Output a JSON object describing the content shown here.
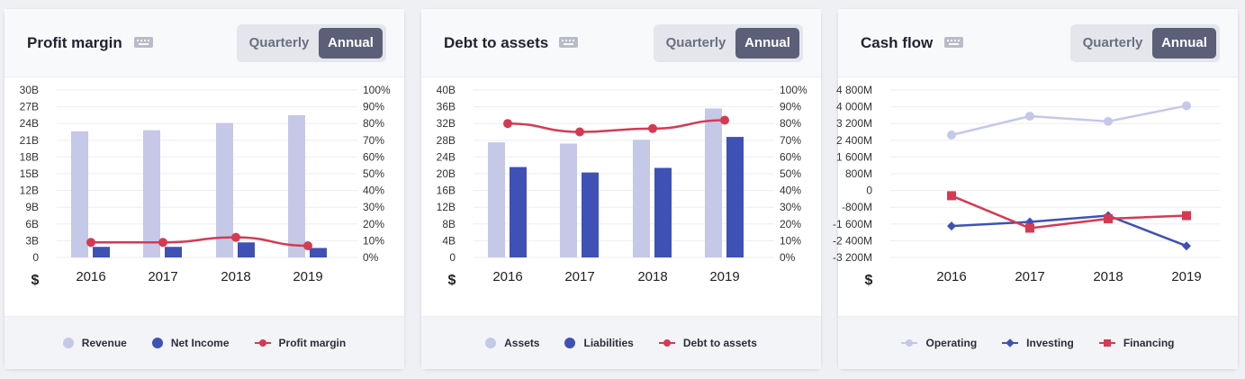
{
  "toggle": {
    "quarterly": "Quarterly",
    "annual": "Annual"
  },
  "cards": [
    {
      "title": "Profit margin",
      "unit": "$",
      "legend": [
        {
          "label": "Revenue",
          "color": "#c5c8e7",
          "kind": "dot"
        },
        {
          "label": "Net Income",
          "color": "#3f51b5",
          "kind": "dot"
        },
        {
          "label": "Profit margin",
          "color": "#d63a52",
          "kind": "line-circle"
        }
      ]
    },
    {
      "title": "Debt to assets",
      "unit": "$",
      "legend": [
        {
          "label": "Assets",
          "color": "#c5c8e7",
          "kind": "dot"
        },
        {
          "label": "Liabilities",
          "color": "#3f51b5",
          "kind": "dot"
        },
        {
          "label": "Debt to assets",
          "color": "#d63a52",
          "kind": "line-circle"
        }
      ]
    },
    {
      "title": "Cash flow",
      "unit": "$",
      "legend": [
        {
          "label": "Operating",
          "color": "#c5c8e7",
          "kind": "line-circle"
        },
        {
          "label": "Investing",
          "color": "#3f51b5",
          "kind": "line-diamond"
        },
        {
          "label": "Financing",
          "color": "#d63a52",
          "kind": "line-square"
        }
      ]
    }
  ],
  "chart_data": [
    {
      "type": "bar",
      "title": "Profit margin",
      "categories": [
        "2016",
        "2017",
        "2018",
        "2019"
      ],
      "y_left": {
        "ticks": [
          "0",
          "3B",
          "6B",
          "9B",
          "12B",
          "15B",
          "18B",
          "21B",
          "24B",
          "27B",
          "30B"
        ],
        "range": [
          0,
          30
        ]
      },
      "y_right": {
        "ticks": [
          "0%",
          "10%",
          "20%",
          "30%",
          "40%",
          "50%",
          "60%",
          "70%",
          "80%",
          "90%",
          "100%"
        ],
        "range": [
          0,
          100
        ]
      },
      "series": [
        {
          "name": "Revenue",
          "kind": "bar",
          "axis": "left",
          "color": "#c5c8e7",
          "values": [
            22.6,
            22.8,
            24.1,
            25.5
          ]
        },
        {
          "name": "Net Income",
          "kind": "bar",
          "axis": "left",
          "color": "#3f51b5",
          "values": [
            1.9,
            1.9,
            2.7,
            1.7
          ]
        },
        {
          "name": "Profit margin",
          "kind": "line",
          "axis": "right",
          "color": "#d63a52",
          "marker": "circle",
          "values": [
            9,
            9,
            12,
            7
          ]
        }
      ]
    },
    {
      "type": "bar",
      "title": "Debt to assets",
      "categories": [
        "2016",
        "2017",
        "2018",
        "2019"
      ],
      "y_left": {
        "ticks": [
          "0",
          "4B",
          "8B",
          "12B",
          "16B",
          "20B",
          "24B",
          "28B",
          "32B",
          "36B",
          "40B"
        ],
        "range": [
          0,
          40
        ]
      },
      "y_right": {
        "ticks": [
          "0%",
          "10%",
          "20%",
          "30%",
          "40%",
          "50%",
          "60%",
          "70%",
          "80%",
          "90%",
          "100%"
        ],
        "range": [
          0,
          100
        ]
      },
      "series": [
        {
          "name": "Assets",
          "kind": "bar",
          "axis": "left",
          "color": "#c5c8e7",
          "values": [
            27.5,
            27.2,
            28.1,
            35.6
          ]
        },
        {
          "name": "Liabilities",
          "kind": "bar",
          "axis": "left",
          "color": "#3f51b5",
          "values": [
            21.6,
            20.3,
            21.4,
            28.8
          ]
        },
        {
          "name": "Debt to assets",
          "kind": "line",
          "axis": "right",
          "color": "#d63a52",
          "marker": "circle",
          "values": [
            80,
            75,
            77,
            82
          ]
        }
      ]
    },
    {
      "type": "line",
      "title": "Cash flow",
      "categories": [
        "2016",
        "2017",
        "2018",
        "2019"
      ],
      "y_left": {
        "ticks": [
          "-3 200M",
          "-2 400M",
          "-1 600M",
          "-800M",
          "0",
          "800M",
          "1 600M",
          "2 400M",
          "3 200M",
          "4 000M",
          "4 800M"
        ],
        "range": [
          -3200,
          4800
        ]
      },
      "series": [
        {
          "name": "Operating",
          "kind": "line",
          "axis": "left",
          "color": "#c5c8e7",
          "marker": "circle",
          "values": [
            2650,
            3550,
            3300,
            4050
          ]
        },
        {
          "name": "Investing",
          "kind": "line",
          "axis": "left",
          "color": "#3f51b5",
          "marker": "diamond",
          "values": [
            -1700,
            -1500,
            -1200,
            -2650
          ]
        },
        {
          "name": "Financing",
          "kind": "line",
          "axis": "left",
          "color": "#d63a52",
          "marker": "square",
          "values": [
            -250,
            -1800,
            -1350,
            -1200
          ]
        }
      ]
    }
  ]
}
